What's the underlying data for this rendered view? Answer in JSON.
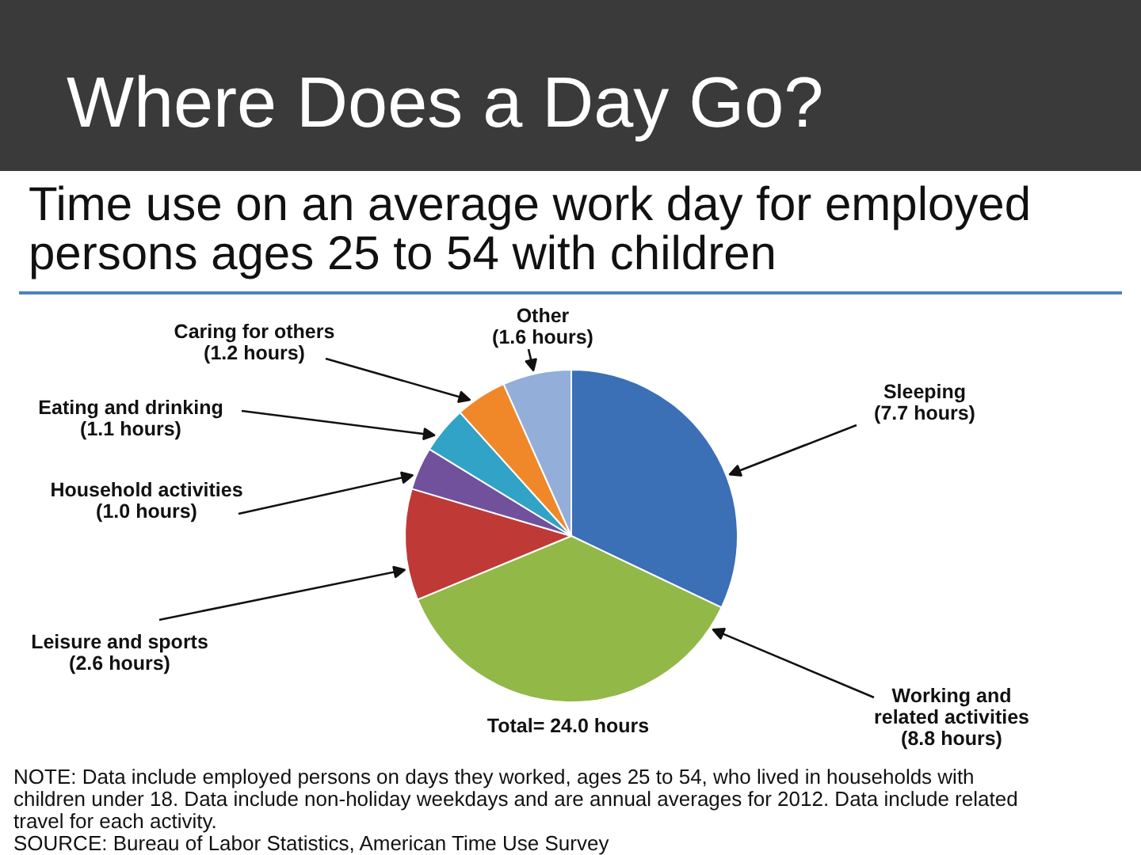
{
  "chart_data": {
    "type": "pie",
    "title": "Where Does a Day Go?",
    "subtitle": "Time use on an average work day for employed persons ages 25 to 54 with children",
    "categories": [
      "Sleeping",
      "Working and related activities",
      "Leisure and sports",
      "Household activities",
      "Eating and drinking",
      "Caring for others",
      "Other"
    ],
    "values": [
      7.7,
      8.8,
      2.6,
      1.0,
      1.1,
      1.2,
      1.6
    ],
    "value_labels": [
      "(7.7 hours)",
      "(8.8 hours)",
      "(2.6 hours)",
      "(1.0 hours)",
      "(1.1 hours)",
      "(1.2 hours)",
      "(1.6 hours)"
    ],
    "colors": [
      "#3b6fb6",
      "#92b847",
      "#bf3a36",
      "#71519b",
      "#31a3c6",
      "#f0882a",
      "#93afd9"
    ],
    "annotations": [
      "Total= 24.0 hours",
      "NOTE: Data include employed persons on days they worked, ages 25 to 54, who lived in households with children under 18. Data include non-holiday weekdays and are annual averages for 2012. Data include related travel for each activity.",
      "SOURCE: Bureau of Labor Statistics, American Time Use Survey"
    ]
  }
}
